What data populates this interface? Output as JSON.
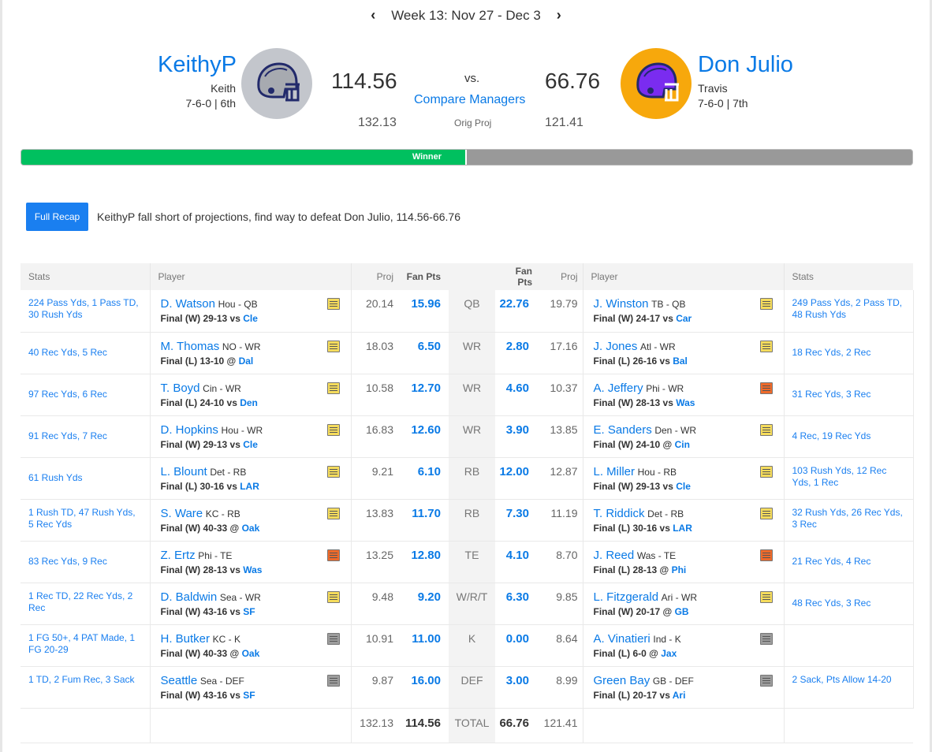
{
  "week": {
    "label": "Week 13: Nov 27 - Dec 3",
    "prev_icon": "chevron-left-icon",
    "next_icon": "chevron-right-icon"
  },
  "team1": {
    "name": "KeithyP",
    "manager": "Keith",
    "record": "7-6-0 | 6th",
    "score": "114.56",
    "orig_proj": "132.13",
    "helmet_color": "#c3c6cc",
    "helmet_bg": "#c3c6cc"
  },
  "team2": {
    "name": "Don Julio",
    "manager": "Travis",
    "record": "7-6-0 | 7th",
    "score": "66.76",
    "orig_proj": "121.41",
    "helmet_color": "#7a2cf0",
    "helmet_bg": "#f7a80c"
  },
  "matchup": {
    "vs": "vs.",
    "compare": "Compare Managers",
    "orig_proj_label": "Orig Proj"
  },
  "winner_bar": {
    "label": "Winner",
    "fraction": 0.5,
    "colors": {
      "win": "#00c05f",
      "lose": "#999999"
    }
  },
  "recap": {
    "button": "Full Recap",
    "text": "KeithyP fall short of projections, find way to defeat Don Julio, 114.56-66.76"
  },
  "table": {
    "headers": {
      "stats": "Stats",
      "player": "Player",
      "proj": "Proj",
      "fan_pts": "Fan Pts"
    },
    "rows": [
      {
        "pos": "QB",
        "l": {
          "stats": "224 Pass Yds, 1 Pass TD, 30 Rush Yds",
          "name": "D. Watson",
          "meta": "Hou - QB",
          "game": "Final (W) 29-13 vs ",
          "opp": "Cle",
          "note": "yellow",
          "proj": "20.14",
          "pts": "15.96"
        },
        "r": {
          "stats": "249 Pass Yds, 2 Pass TD, 48 Rush Yds",
          "name": "J. Winston",
          "meta": "TB - QB",
          "game": "Final (W) 24-17 vs ",
          "opp": "Car",
          "note": "yellow",
          "proj": "19.79",
          "pts": "22.76"
        }
      },
      {
        "pos": "WR",
        "l": {
          "stats": "40 Rec Yds, 5 Rec",
          "name": "M. Thomas",
          "meta": "NO - WR",
          "game": "Final (L) 13-10 @ ",
          "opp": "Dal",
          "note": "yellow",
          "proj": "18.03",
          "pts": "6.50"
        },
        "r": {
          "stats": "18 Rec Yds, 2 Rec",
          "name": "J. Jones",
          "meta": "Atl - WR",
          "game": "Final (L) 26-16 vs ",
          "opp": "Bal",
          "note": "yellow",
          "proj": "17.16",
          "pts": "2.80"
        }
      },
      {
        "pos": "WR",
        "l": {
          "stats": "97 Rec Yds, 6 Rec",
          "name": "T. Boyd",
          "meta": "Cin - WR",
          "game": "Final (L) 24-10 vs ",
          "opp": "Den",
          "note": "yellow",
          "proj": "10.58",
          "pts": "12.70"
        },
        "r": {
          "stats": "31 Rec Yds, 3 Rec",
          "name": "A. Jeffery",
          "meta": "Phi - WR",
          "game": "Final (W) 28-13 vs ",
          "opp": "Was",
          "note": "orange",
          "proj": "10.37",
          "pts": "4.60"
        }
      },
      {
        "pos": "WR",
        "l": {
          "stats": "91 Rec Yds, 7 Rec",
          "name": "D. Hopkins",
          "meta": "Hou - WR",
          "game": "Final (W) 29-13 vs ",
          "opp": "Cle",
          "note": "yellow",
          "proj": "16.83",
          "pts": "12.60"
        },
        "r": {
          "stats": "4 Rec, 19 Rec Yds",
          "name": "E. Sanders",
          "meta": "Den - WR",
          "game": "Final (W) 24-10 @ ",
          "opp": "Cin",
          "note": "yellow",
          "proj": "13.85",
          "pts": "3.90"
        }
      },
      {
        "pos": "RB",
        "l": {
          "stats": "61 Rush Yds",
          "name": "L. Blount",
          "meta": "Det - RB",
          "game": "Final (L) 30-16 vs ",
          "opp": "LAR",
          "note": "yellow",
          "proj": "9.21",
          "pts": "6.10"
        },
        "r": {
          "stats": "103 Rush Yds, 12 Rec Yds, 1 Rec",
          "name": "L. Miller",
          "meta": "Hou - RB",
          "game": "Final (W) 29-13 vs ",
          "opp": "Cle",
          "note": "yellow",
          "proj": "12.87",
          "pts": "12.00"
        }
      },
      {
        "pos": "RB",
        "l": {
          "stats": "1 Rush TD, 47 Rush Yds, 5 Rec Yds",
          "name": "S. Ware",
          "meta": "KC - RB",
          "game": "Final (W) 40-33 @ ",
          "opp": "Oak",
          "note": "yellow",
          "proj": "13.83",
          "pts": "11.70"
        },
        "r": {
          "stats": "32 Rush Yds, 26 Rec Yds, 3 Rec",
          "name": "T. Riddick",
          "meta": "Det - RB",
          "game": "Final (L) 30-16 vs ",
          "opp": "LAR",
          "note": "yellow",
          "proj": "11.19",
          "pts": "7.30"
        }
      },
      {
        "pos": "TE",
        "l": {
          "stats": "83 Rec Yds, 9 Rec",
          "name": "Z. Ertz",
          "meta": "Phi - TE",
          "game": "Final (W) 28-13 vs ",
          "opp": "Was",
          "note": "orange",
          "proj": "13.25",
          "pts": "12.80"
        },
        "r": {
          "stats": "21 Rec Yds, 4 Rec",
          "name": "J. Reed",
          "meta": "Was - TE",
          "game": "Final (L) 28-13 @ ",
          "opp": "Phi",
          "note": "orange",
          "proj": "8.70",
          "pts": "4.10"
        }
      },
      {
        "pos": "W/R/T",
        "l": {
          "stats": "1 Rec TD, 22 Rec Yds, 2 Rec",
          "name": "D. Baldwin",
          "meta": "Sea - WR",
          "game": "Final (W) 43-16 vs ",
          "opp": "SF",
          "note": "yellow",
          "proj": "9.48",
          "pts": "9.20"
        },
        "r": {
          "stats": "48 Rec Yds, 3 Rec",
          "name": "L. Fitzgerald",
          "meta": "Ari - WR",
          "game": "Final (W) 20-17 @ ",
          "opp": "GB",
          "note": "yellow",
          "proj": "9.85",
          "pts": "6.30"
        }
      },
      {
        "pos": "K",
        "l": {
          "stats": "1 FG 50+, 4 PAT Made, 1 FG 20-29",
          "name": "H. Butker",
          "meta": "KC - K",
          "game": "Final (W) 40-33 @ ",
          "opp": "Oak",
          "note": "gray",
          "proj": "10.91",
          "pts": "11.00"
        },
        "r": {
          "stats": "",
          "name": "A. Vinatieri",
          "meta": "Ind - K",
          "game": "Final (L) 6-0 @ ",
          "opp": "Jax",
          "note": "gray",
          "proj": "8.64",
          "pts": "0.00"
        }
      },
      {
        "pos": "DEF",
        "l": {
          "stats": "1 TD, 2 Fum Rec, 3 Sack",
          "name": "Seattle",
          "meta": "Sea - DEF",
          "game": "Final (W) 43-16 vs ",
          "opp": "SF",
          "note": "gray",
          "proj": "9.87",
          "pts": "16.00"
        },
        "r": {
          "stats": "2 Sack, Pts Allow 14-20",
          "name": "Green Bay",
          "meta": "GB - DEF",
          "game": "Final (L) 20-17 vs ",
          "opp": "Ari",
          "note": "gray",
          "proj": "8.99",
          "pts": "3.00"
        }
      }
    ],
    "total": {
      "label": "TOTAL",
      "l_proj": "132.13",
      "l_pts": "114.56",
      "r_pts": "66.76",
      "r_proj": "121.41"
    }
  }
}
